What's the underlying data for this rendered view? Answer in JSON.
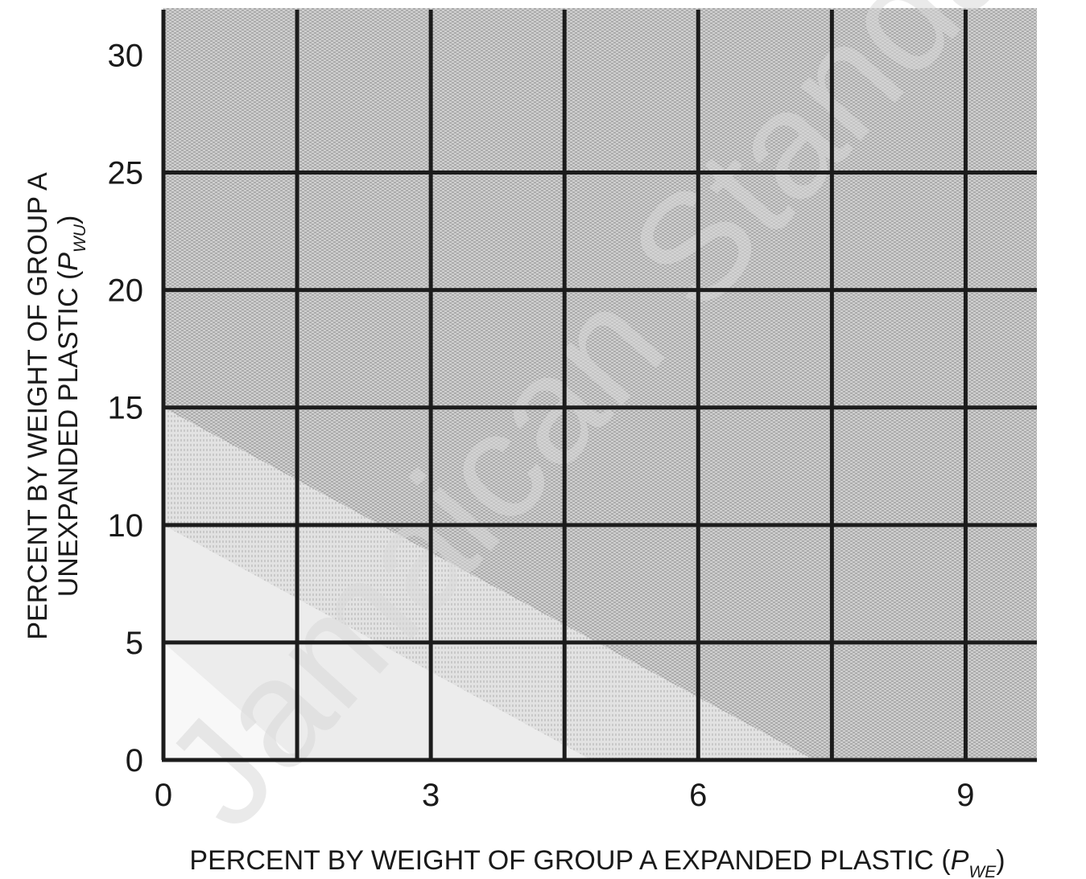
{
  "chart_data": {
    "type": "area",
    "x_axis": {
      "label_prefix": "PERCENT BY WEIGHT OF GROUP A EXPANDED PLASTIC (",
      "label_var": "P",
      "label_sub": "WE",
      "label_suffix": ")",
      "ticks": [
        0,
        3,
        6,
        9
      ],
      "range": [
        0,
        9.8
      ],
      "gridlines": [
        0,
        1.5,
        3,
        4.5,
        6,
        7.5,
        9
      ]
    },
    "y_axis": {
      "label_line1": "PERCENT BY WEIGHT OF GROUP A",
      "label_line2_prefix": "UNEXPANDED PLASTIC (",
      "label_var": "P",
      "label_sub": "WU",
      "label_suffix": ")",
      "ticks": [
        0,
        5,
        10,
        15,
        20,
        25,
        30
      ],
      "range": [
        0,
        32
      ],
      "gridlines": [
        0,
        5,
        10,
        15,
        20,
        25
      ]
    },
    "regions": [
      {
        "name": "zone-dark",
        "shade": "dark",
        "boundary_intercepts": {
          "x": 9.8,
          "y": 32
        }
      },
      {
        "name": "zone-medium",
        "shade": "medium",
        "boundary_intercepts": {
          "x": 7.3,
          "y": 15
        }
      },
      {
        "name": "zone-light",
        "shade": "light",
        "boundary_intercepts": {
          "x": 4.8,
          "y": 10
        }
      },
      {
        "name": "zone-lightest",
        "shade": "lightest",
        "boundary_intercepts": {
          "x": 1.5,
          "y": 5
        }
      }
    ],
    "grid": true,
    "legend": "none"
  },
  "watermark": "Jamaican Standard",
  "colors": {
    "dark": "#a6a6a6",
    "medium": "#d3d3d3",
    "light": "#ececec",
    "lightest": "#f8f8f8",
    "grid": "#1c1c1c"
  }
}
